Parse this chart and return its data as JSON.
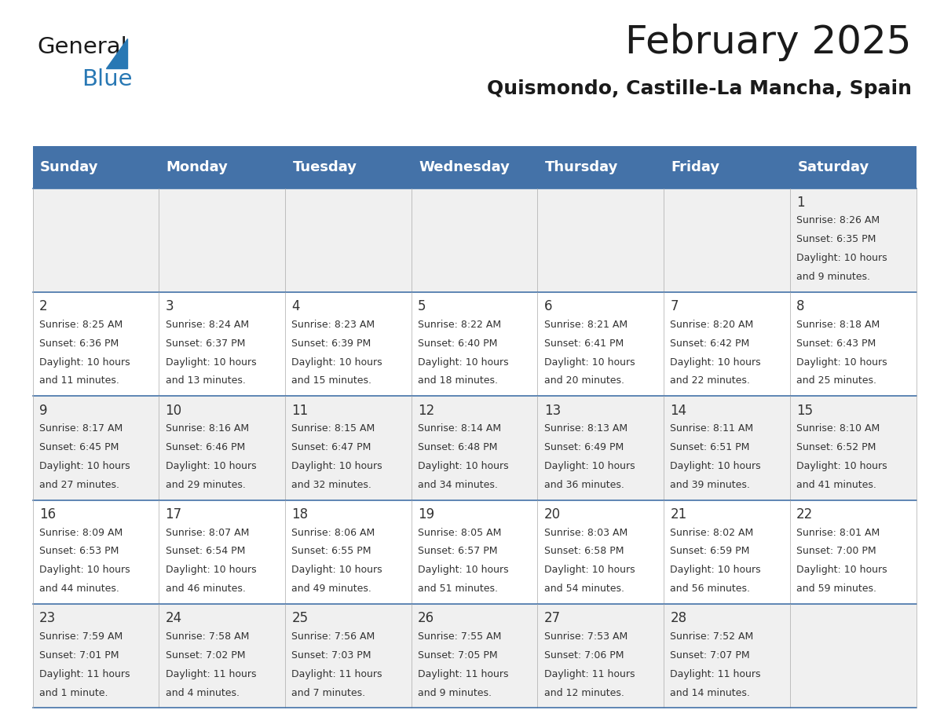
{
  "title": "February 2025",
  "subtitle": "Quismondo, Castille-La Mancha, Spain",
  "header_bg": "#4472a8",
  "header_text": "#ffffff",
  "row_bg_odd": "#f0f0f0",
  "row_bg_even": "#ffffff",
  "border_color": "#4472a8",
  "day_headers": [
    "Sunday",
    "Monday",
    "Tuesday",
    "Wednesday",
    "Thursday",
    "Friday",
    "Saturday"
  ],
  "calendar_data": [
    [
      null,
      null,
      null,
      null,
      null,
      null,
      {
        "day": 1,
        "sunrise": "8:26 AM",
        "sunset": "6:35 PM",
        "daylight_line1": "Daylight: 10 hours",
        "daylight_line2": "and 9 minutes."
      }
    ],
    [
      {
        "day": 2,
        "sunrise": "8:25 AM",
        "sunset": "6:36 PM",
        "daylight_line1": "Daylight: 10 hours",
        "daylight_line2": "and 11 minutes."
      },
      {
        "day": 3,
        "sunrise": "8:24 AM",
        "sunset": "6:37 PM",
        "daylight_line1": "Daylight: 10 hours",
        "daylight_line2": "and 13 minutes."
      },
      {
        "day": 4,
        "sunrise": "8:23 AM",
        "sunset": "6:39 PM",
        "daylight_line1": "Daylight: 10 hours",
        "daylight_line2": "and 15 minutes."
      },
      {
        "day": 5,
        "sunrise": "8:22 AM",
        "sunset": "6:40 PM",
        "daylight_line1": "Daylight: 10 hours",
        "daylight_line2": "and 18 minutes."
      },
      {
        "day": 6,
        "sunrise": "8:21 AM",
        "sunset": "6:41 PM",
        "daylight_line1": "Daylight: 10 hours",
        "daylight_line2": "and 20 minutes."
      },
      {
        "day": 7,
        "sunrise": "8:20 AM",
        "sunset": "6:42 PM",
        "daylight_line1": "Daylight: 10 hours",
        "daylight_line2": "and 22 minutes."
      },
      {
        "day": 8,
        "sunrise": "8:18 AM",
        "sunset": "6:43 PM",
        "daylight_line1": "Daylight: 10 hours",
        "daylight_line2": "and 25 minutes."
      }
    ],
    [
      {
        "day": 9,
        "sunrise": "8:17 AM",
        "sunset": "6:45 PM",
        "daylight_line1": "Daylight: 10 hours",
        "daylight_line2": "and 27 minutes."
      },
      {
        "day": 10,
        "sunrise": "8:16 AM",
        "sunset": "6:46 PM",
        "daylight_line1": "Daylight: 10 hours",
        "daylight_line2": "and 29 minutes."
      },
      {
        "day": 11,
        "sunrise": "8:15 AM",
        "sunset": "6:47 PM",
        "daylight_line1": "Daylight: 10 hours",
        "daylight_line2": "and 32 minutes."
      },
      {
        "day": 12,
        "sunrise": "8:14 AM",
        "sunset": "6:48 PM",
        "daylight_line1": "Daylight: 10 hours",
        "daylight_line2": "and 34 minutes."
      },
      {
        "day": 13,
        "sunrise": "8:13 AM",
        "sunset": "6:49 PM",
        "daylight_line1": "Daylight: 10 hours",
        "daylight_line2": "and 36 minutes."
      },
      {
        "day": 14,
        "sunrise": "8:11 AM",
        "sunset": "6:51 PM",
        "daylight_line1": "Daylight: 10 hours",
        "daylight_line2": "and 39 minutes."
      },
      {
        "day": 15,
        "sunrise": "8:10 AM",
        "sunset": "6:52 PM",
        "daylight_line1": "Daylight: 10 hours",
        "daylight_line2": "and 41 minutes."
      }
    ],
    [
      {
        "day": 16,
        "sunrise": "8:09 AM",
        "sunset": "6:53 PM",
        "daylight_line1": "Daylight: 10 hours",
        "daylight_line2": "and 44 minutes."
      },
      {
        "day": 17,
        "sunrise": "8:07 AM",
        "sunset": "6:54 PM",
        "daylight_line1": "Daylight: 10 hours",
        "daylight_line2": "and 46 minutes."
      },
      {
        "day": 18,
        "sunrise": "8:06 AM",
        "sunset": "6:55 PM",
        "daylight_line1": "Daylight: 10 hours",
        "daylight_line2": "and 49 minutes."
      },
      {
        "day": 19,
        "sunrise": "8:05 AM",
        "sunset": "6:57 PM",
        "daylight_line1": "Daylight: 10 hours",
        "daylight_line2": "and 51 minutes."
      },
      {
        "day": 20,
        "sunrise": "8:03 AM",
        "sunset": "6:58 PM",
        "daylight_line1": "Daylight: 10 hours",
        "daylight_line2": "and 54 minutes."
      },
      {
        "day": 21,
        "sunrise": "8:02 AM",
        "sunset": "6:59 PM",
        "daylight_line1": "Daylight: 10 hours",
        "daylight_line2": "and 56 minutes."
      },
      {
        "day": 22,
        "sunrise": "8:01 AM",
        "sunset": "7:00 PM",
        "daylight_line1": "Daylight: 10 hours",
        "daylight_line2": "and 59 minutes."
      }
    ],
    [
      {
        "day": 23,
        "sunrise": "7:59 AM",
        "sunset": "7:01 PM",
        "daylight_line1": "Daylight: 11 hours",
        "daylight_line2": "and 1 minute."
      },
      {
        "day": 24,
        "sunrise": "7:58 AM",
        "sunset": "7:02 PM",
        "daylight_line1": "Daylight: 11 hours",
        "daylight_line2": "and 4 minutes."
      },
      {
        "day": 25,
        "sunrise": "7:56 AM",
        "sunset": "7:03 PM",
        "daylight_line1": "Daylight: 11 hours",
        "daylight_line2": "and 7 minutes."
      },
      {
        "day": 26,
        "sunrise": "7:55 AM",
        "sunset": "7:05 PM",
        "daylight_line1": "Daylight: 11 hours",
        "daylight_line2": "and 9 minutes."
      },
      {
        "day": 27,
        "sunrise": "7:53 AM",
        "sunset": "7:06 PM",
        "daylight_line1": "Daylight: 11 hours",
        "daylight_line2": "and 12 minutes."
      },
      {
        "day": 28,
        "sunrise": "7:52 AM",
        "sunset": "7:07 PM",
        "daylight_line1": "Daylight: 11 hours",
        "daylight_line2": "and 14 minutes."
      },
      null
    ]
  ],
  "logo_text_general": "General",
  "logo_text_blue": "Blue",
  "title_fontsize": 36,
  "subtitle_fontsize": 18,
  "header_fontsize": 13,
  "day_num_fontsize": 12,
  "cell_fontsize": 9
}
